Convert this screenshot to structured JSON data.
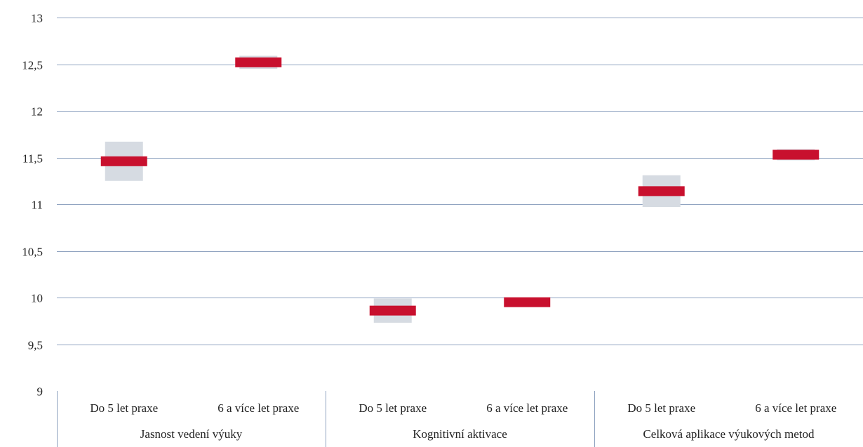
{
  "chart_data": {
    "type": "scatter",
    "title": "",
    "xlabel": "",
    "ylabel": "",
    "ylim": [
      9,
      13
    ],
    "yticks": [
      "9",
      "9,5",
      "10",
      "10,5",
      "11",
      "11,5",
      "12",
      "12,5",
      "13"
    ],
    "ytick_values": [
      9,
      9.5,
      10,
      10.5,
      11,
      11.5,
      12,
      12.5,
      13
    ],
    "grid": true,
    "groups": [
      {
        "label": "Jasnost vedení výuky",
        "categories": [
          "Do 5 let praxe",
          "6 a více let praxe"
        ]
      },
      {
        "label": "Kognitivní aktivace",
        "categories": [
          "Do 5 let praxe",
          "6 a více let praxe"
        ]
      },
      {
        "label": "Celková aplikace výukových metod",
        "categories": [
          "Do 5 let praxe",
          "6 a více let praxe"
        ]
      }
    ],
    "points": [
      {
        "group": "Jasnost vedení výuky",
        "category": "Do 5 let praxe",
        "mean": 11.46,
        "ci_low": 11.25,
        "ci_high": 11.67
      },
      {
        "group": "Jasnost vedení výuky",
        "category": "6 a více let praxe",
        "mean": 12.52,
        "ci_low": 12.45,
        "ci_high": 12.59
      },
      {
        "group": "Kognitivní aktivace",
        "category": "Do 5 let praxe",
        "mean": 9.86,
        "ci_low": 9.73,
        "ci_high": 9.99
      },
      {
        "group": "Kognitivní aktivace",
        "category": "6 a více let praxe",
        "mean": 9.95,
        "ci_low": 9.92,
        "ci_high": 9.98
      },
      {
        "group": "Celková aplikace výukových metod",
        "category": "Do 5 let praxe",
        "mean": 11.14,
        "ci_low": 10.97,
        "ci_high": 11.31
      },
      {
        "group": "Celková aplikace výukových metod",
        "category": "6 a více let praxe",
        "mean": 11.53,
        "ci_low": 11.47,
        "ci_high": 11.59
      }
    ],
    "colors": {
      "mean": "#c8102e",
      "interval": "#d6dbe2",
      "grid": "#8fa3c0",
      "axis": "#8fa3c0",
      "text": "#222222"
    }
  }
}
